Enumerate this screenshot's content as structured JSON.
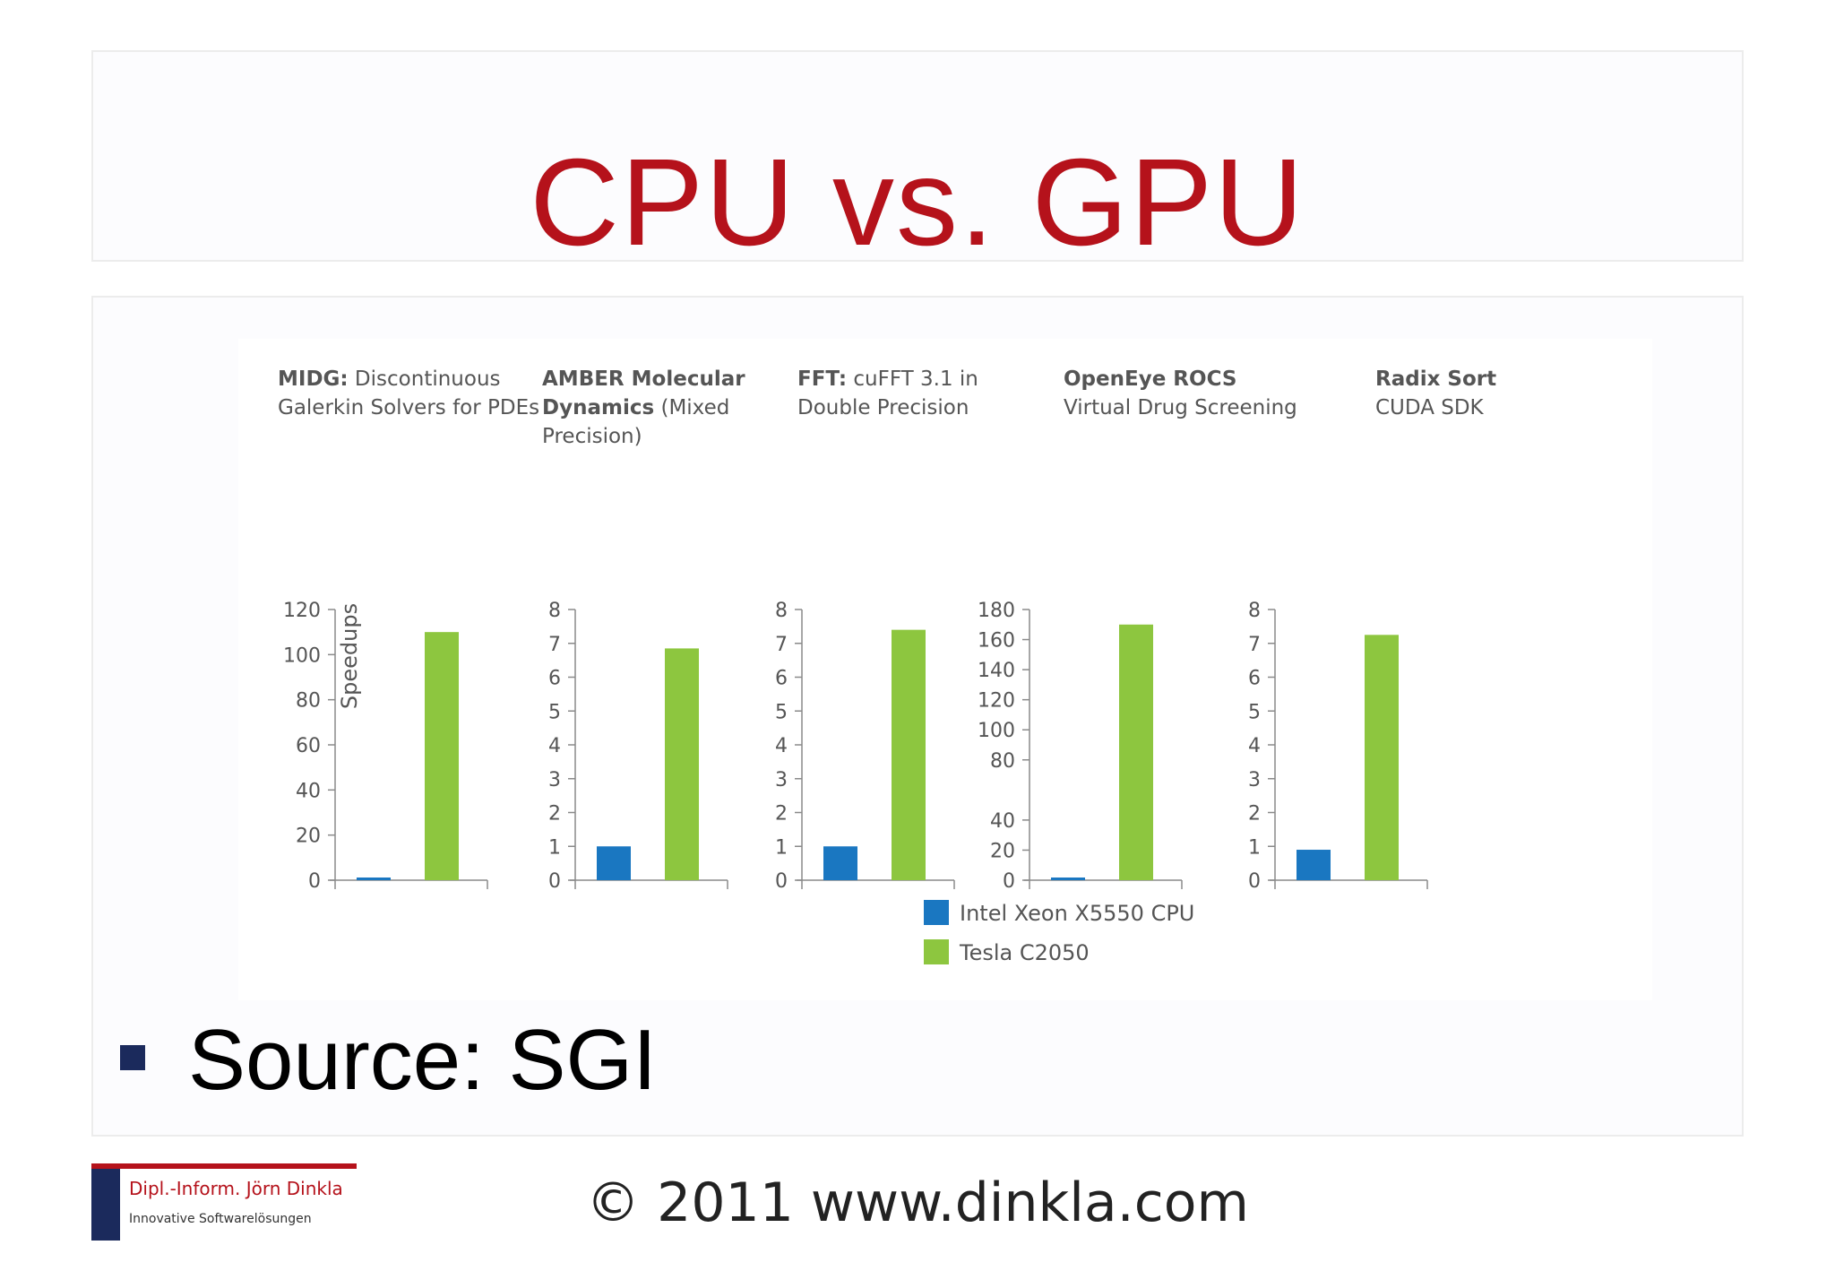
{
  "slide": {
    "title": "CPU vs. GPU",
    "bullet_text": "Source: SGI",
    "footer": "© 2011 www.dinkla.com",
    "logo_name": "Dipl.-Inform. Jörn Dinkla",
    "logo_tagline": "Innovative Softwarelösungen",
    "title_color": "#b5121b",
    "bullet_color": "#1b2a5c"
  },
  "chart_data": {
    "type": "bar",
    "ylabel": "Speedups",
    "legend_position": "bottom-center",
    "grid": false,
    "series": [
      {
        "name": "Intel Xeon X5550 CPU",
        "color": "#1a77c1"
      },
      {
        "name": "Tesla C2050",
        "color": "#8dc63f"
      }
    ],
    "panels": [
      {
        "title_bold": "MIDG:",
        "title_lines": [
          " Discontinuous",
          "Galerkin Solvers for PDEs"
        ],
        "ylim": [
          0,
          120
        ],
        "ticks": [
          0,
          20,
          40,
          60,
          80,
          100,
          120
        ],
        "tick_labels": [
          "0",
          "20",
          "40",
          "60",
          "80",
          "100",
          "120"
        ],
        "values": [
          1,
          110
        ]
      },
      {
        "title_bold": "AMBER Molecular",
        "title_bold_line2": "Dynamics",
        "title_lines": [
          "",
          " (Mixed",
          "Precision)"
        ],
        "ylim": [
          0,
          8
        ],
        "ticks": [
          0,
          1,
          2,
          3,
          4,
          5,
          6,
          7,
          8
        ],
        "tick_labels": [
          "0",
          "1",
          "2",
          "3",
          "4",
          "5",
          "6",
          "7",
          "8"
        ],
        "values": [
          1,
          6.85
        ]
      },
      {
        "title_bold": "FFT:",
        "title_lines": [
          " cuFFT 3.1 in",
          "Double Precision"
        ],
        "ylim": [
          0,
          8
        ],
        "ticks": [
          0,
          1,
          2,
          3,
          4,
          5,
          6,
          7,
          8
        ],
        "tick_labels": [
          "0",
          "1",
          "2",
          "3",
          "4",
          "5",
          "6",
          "7",
          "8"
        ],
        "values": [
          1,
          7.4
        ]
      },
      {
        "title_bold": "OpenEye ROCS",
        "title_lines": [
          "",
          "Virtual Drug Screening"
        ],
        "ylim": [
          0,
          180
        ],
        "ticks": [
          0,
          20,
          40,
          80,
          100,
          120,
          140,
          160,
          180
        ],
        "tick_labels": [
          "0",
          "20",
          "40",
          "80",
          "100",
          "120",
          "140",
          "160",
          "180"
        ],
        "values": [
          1,
          170
        ]
      },
      {
        "title_bold": "Radix Sort",
        "title_lines": [
          "",
          "CUDA SDK"
        ],
        "ylim": [
          0,
          8
        ],
        "ticks": [
          0,
          1,
          2,
          3,
          4,
          5,
          6,
          7,
          8
        ],
        "tick_labels": [
          "0",
          "1",
          "2",
          "3",
          "4",
          "5",
          "6",
          "7",
          "8"
        ],
        "values": [
          0.9,
          7.25
        ]
      }
    ]
  }
}
